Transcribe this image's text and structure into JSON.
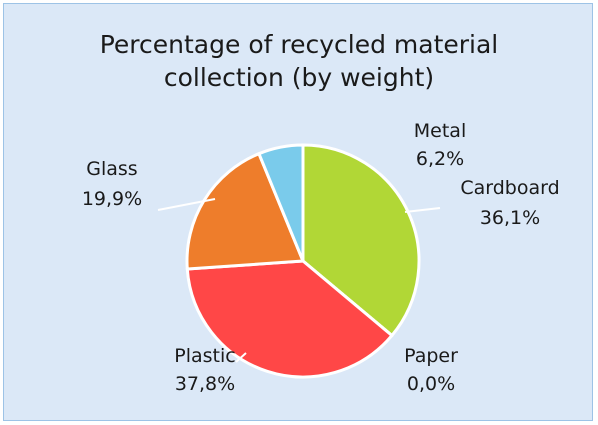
{
  "chart_data": {
    "type": "pie",
    "title": "Percentage of recycled material collection (by weight)",
    "title_lines": [
      "Percentage of recycled material",
      "collection (by weight)"
    ],
    "legend": "none",
    "slices": [
      {
        "label": "Cardboard",
        "value": 36.1,
        "value_label": "36,1%",
        "color": "#b1d736"
      },
      {
        "label": "Paper",
        "value": 0.0,
        "value_label": "0,0%",
        "color": "#4472c4"
      },
      {
        "label": "Plastic",
        "value": 37.8,
        "value_label": "37,8%",
        "color": "#ff4747"
      },
      {
        "label": "Glass",
        "value": 19.9,
        "value_label": "19,9%",
        "color": "#ee7d2b"
      },
      {
        "label": "Metal",
        "value": 6.2,
        "value_label": "6,2%",
        "color": "#7acbeb"
      }
    ]
  }
}
